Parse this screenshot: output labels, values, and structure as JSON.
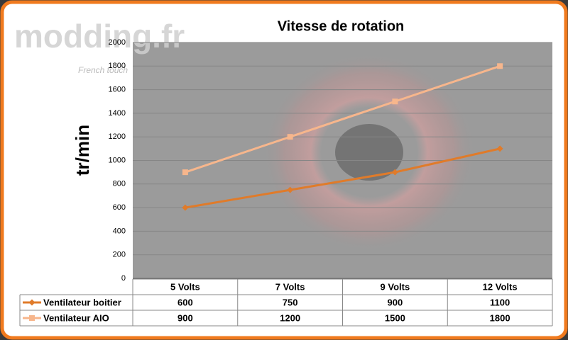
{
  "watermark": {
    "logo": "modding.fr",
    "tagline": "French touch"
  },
  "chart_data": {
    "type": "line",
    "title": "Vitesse de rotation",
    "y_label": "tr/min",
    "categories": [
      "5 Volts",
      "7 Volts",
      "9 Volts",
      "12 Volts"
    ],
    "series": [
      {
        "name": "Ventilateur boitier",
        "color": "#e07b2a",
        "marker": "diamond",
        "values": [
          600,
          750,
          900,
          1100
        ]
      },
      {
        "name": "Ventilateur AIO",
        "color": "#f7b68c",
        "marker": "square",
        "values": [
          900,
          1200,
          1500,
          1800
        ]
      }
    ],
    "ylim": [
      0,
      2000
    ],
    "yticks": [
      0,
      200,
      400,
      600,
      800,
      1000,
      1200,
      1400,
      1600,
      1800,
      2000
    ],
    "grid": true,
    "data_table": true
  }
}
